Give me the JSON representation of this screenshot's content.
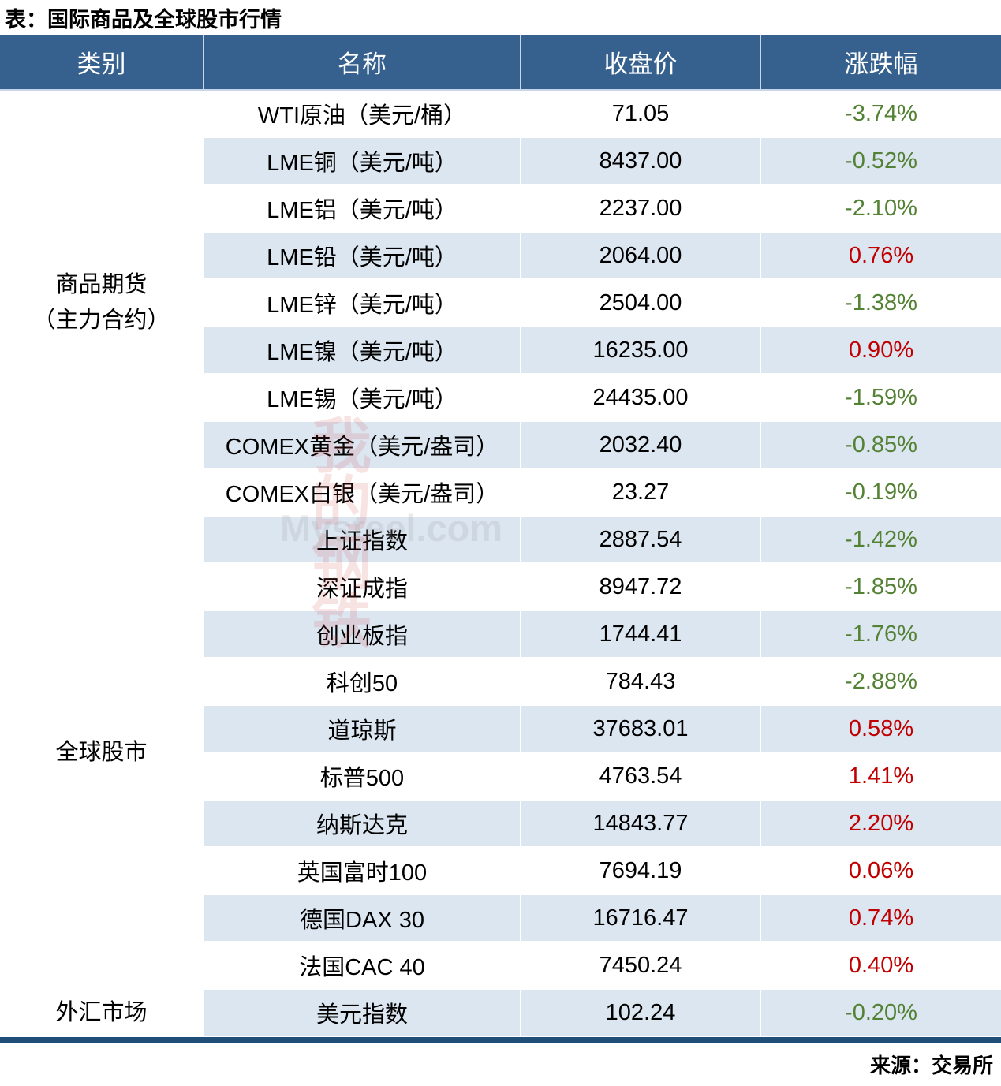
{
  "colors": {
    "header_bg": "#36618e",
    "row_alt_bg": "#dce6f1",
    "up_red": "#c00000",
    "down_green": "#548235",
    "bottom_border": "#1f4e79",
    "header_divider": "#c9d6e8"
  },
  "watermark": {
    "text_cn": "我的\n钢铁",
    "text_site": "Mysteel.com"
  },
  "chart_data": {
    "type": "table",
    "title": "表：国际商品及全球股市行情",
    "source": "来源：交易所",
    "columns": [
      "类别",
      "名称",
      "收盘价",
      "涨跌幅"
    ],
    "categories": [
      {
        "label": "商品期货\n（主力合约）",
        "rowspan": 9
      },
      {
        "label": "全球股市",
        "rowspan": 10
      },
      {
        "label": "外汇市场",
        "rowspan": 1
      }
    ],
    "rows": [
      {
        "name": "WTI原油（美元/桶）",
        "close": "71.05",
        "change": "-3.74%"
      },
      {
        "name": "LME铜（美元/吨）",
        "close": "8437.00",
        "change": "-0.52%"
      },
      {
        "name": "LME铝（美元/吨）",
        "close": "2237.00",
        "change": "-2.10%"
      },
      {
        "name": "LME铅（美元/吨）",
        "close": "2064.00",
        "change": "0.76%"
      },
      {
        "name": "LME锌（美元/吨）",
        "close": "2504.00",
        "change": "-1.38%"
      },
      {
        "name": "LME镍（美元/吨）",
        "close": "16235.00",
        "change": "0.90%"
      },
      {
        "name": "LME锡（美元/吨）",
        "close": "24435.00",
        "change": "-1.59%"
      },
      {
        "name": "COMEX黄金（美元/盎司）",
        "close": "2032.40",
        "change": "-0.85%"
      },
      {
        "name": "COMEX白银（美元/盎司）",
        "close": "23.27",
        "change": "-0.19%"
      },
      {
        "name": "上证指数",
        "close": "2887.54",
        "change": "-1.42%"
      },
      {
        "name": "深证成指",
        "close": "8947.72",
        "change": "-1.85%"
      },
      {
        "name": "创业板指",
        "close": "1744.41",
        "change": "-1.76%"
      },
      {
        "name": "科创50",
        "close": "784.43",
        "change": "-2.88%"
      },
      {
        "name": "道琼斯",
        "close": "37683.01",
        "change": "0.58%"
      },
      {
        "name": "标普500",
        "close": "4763.54",
        "change": "1.41%"
      },
      {
        "name": "纳斯达克",
        "close": "14843.77",
        "change": "2.20%"
      },
      {
        "name": "英国富时100",
        "close": "7694.19",
        "change": "0.06%"
      },
      {
        "name": "德国DAX 30",
        "close": "16716.47",
        "change": "0.74%"
      },
      {
        "name": "法国CAC 40",
        "close": "7450.24",
        "change": "0.40%"
      },
      {
        "name": "美元指数",
        "close": "102.24",
        "change": "-0.20%"
      }
    ]
  }
}
